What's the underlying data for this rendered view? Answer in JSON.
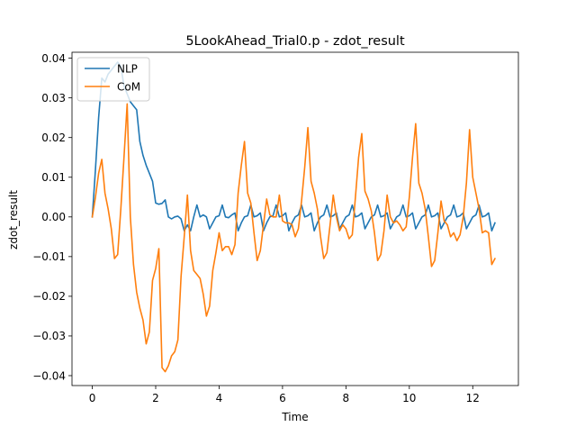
{
  "chart_data": {
    "type": "line",
    "title": "5LookAhead_Trial0.p - zdot_result",
    "xlabel": "Time",
    "ylabel": "zdot_result",
    "xlim": [
      -0.64,
      13.44
    ],
    "ylim": [
      -0.0425,
      0.0415
    ],
    "xticks": [
      0,
      2,
      4,
      6,
      8,
      10,
      12
    ],
    "xtick_labels": [
      "0",
      "2",
      "4",
      "6",
      "8",
      "10",
      "12"
    ],
    "yticks": [
      -0.04,
      -0.03,
      -0.02,
      -0.01,
      0.0,
      0.01,
      0.02,
      0.03,
      0.04
    ],
    "ytick_labels": [
      "−0.04",
      "−0.03",
      "−0.02",
      "−0.01",
      "0.00",
      "0.01",
      "0.02",
      "0.03",
      "0.04"
    ],
    "grid": false,
    "legend_position": "top-left",
    "series": [
      {
        "name": "NLP",
        "color": "#1f77b4",
        "points": [
          [
            0.0,
            0.0
          ],
          [
            0.1,
            0.012
          ],
          [
            0.2,
            0.025
          ],
          [
            0.3,
            0.035
          ],
          [
            0.4,
            0.034
          ],
          [
            0.5,
            0.036
          ],
          [
            0.6,
            0.037
          ],
          [
            0.7,
            0.038
          ],
          [
            0.8,
            0.039
          ],
          [
            0.9,
            0.038
          ],
          [
            1.0,
            0.033
          ],
          [
            1.1,
            0.031
          ],
          [
            1.2,
            0.029
          ],
          [
            1.3,
            0.028
          ],
          [
            1.4,
            0.027
          ],
          [
            1.5,
            0.019
          ],
          [
            1.6,
            0.0155
          ],
          [
            1.7,
            0.013
          ],
          [
            1.8,
            0.011
          ],
          [
            1.9,
            0.009
          ],
          [
            2.0,
            0.0035
          ],
          [
            2.1,
            0.0032
          ],
          [
            2.2,
            0.0034
          ],
          [
            2.3,
            0.0043
          ],
          [
            2.4,
            0.0
          ],
          [
            2.5,
            -0.0005
          ],
          [
            2.6,
            0.0
          ],
          [
            2.7,
            0.0002
          ],
          [
            2.8,
            -0.0005
          ],
          [
            2.9,
            -0.0035
          ],
          [
            3.0,
            -0.002
          ],
          [
            3.1,
            -0.0035
          ],
          [
            3.2,
            0.0
          ],
          [
            3.3,
            0.003
          ],
          [
            3.4,
            0.0
          ],
          [
            3.5,
            0.0005
          ],
          [
            3.6,
            0.0
          ],
          [
            3.7,
            -0.003
          ],
          [
            3.8,
            -0.0015
          ],
          [
            3.9,
            0.0
          ],
          [
            4.0,
            0.0003
          ],
          [
            4.1,
            0.003
          ],
          [
            4.2,
            0.0
          ],
          [
            4.3,
            -0.0002
          ],
          [
            4.4,
            0.0005
          ],
          [
            4.5,
            0.001
          ],
          [
            4.6,
            -0.0035
          ],
          [
            4.7,
            -0.0015
          ],
          [
            4.8,
            0.0
          ],
          [
            4.9,
            0.0003
          ],
          [
            5.0,
            0.003
          ],
          [
            5.1,
            0.0
          ],
          [
            5.2,
            0.0003
          ],
          [
            5.3,
            0.001
          ],
          [
            5.4,
            -0.0035
          ],
          [
            5.5,
            -0.0015
          ],
          [
            5.6,
            0.0
          ],
          [
            5.7,
            0.0003
          ],
          [
            5.8,
            0.003
          ],
          [
            5.9,
            0.0
          ],
          [
            6.0,
            0.0003
          ],
          [
            6.1,
            0.001
          ],
          [
            6.2,
            -0.0035
          ],
          [
            6.3,
            -0.0015
          ],
          [
            6.4,
            0.0
          ],
          [
            6.5,
            0.0005
          ],
          [
            6.6,
            0.003
          ],
          [
            6.7,
            0.0
          ],
          [
            6.8,
            0.0003
          ],
          [
            6.9,
            0.001
          ],
          [
            7.0,
            -0.0035
          ],
          [
            7.1,
            -0.0015
          ],
          [
            7.2,
            0.0
          ],
          [
            7.3,
            0.0005
          ],
          [
            7.4,
            0.003
          ],
          [
            7.5,
            0.0
          ],
          [
            7.6,
            0.0003
          ],
          [
            7.7,
            0.001
          ],
          [
            7.8,
            -0.003
          ],
          [
            7.9,
            -0.0015
          ],
          [
            8.0,
            0.0
          ],
          [
            8.1,
            0.0005
          ],
          [
            8.2,
            0.003
          ],
          [
            8.3,
            0.0
          ],
          [
            8.4,
            0.0003
          ],
          [
            8.5,
            0.001
          ],
          [
            8.6,
            -0.003
          ],
          [
            8.7,
            -0.0015
          ],
          [
            8.8,
            0.0
          ],
          [
            8.9,
            0.0005
          ],
          [
            9.0,
            0.003
          ],
          [
            9.1,
            0.0
          ],
          [
            9.2,
            0.0003
          ],
          [
            9.3,
            0.001
          ],
          [
            9.4,
            -0.003
          ],
          [
            9.5,
            -0.0015
          ],
          [
            9.6,
            0.0
          ],
          [
            9.7,
            0.0005
          ],
          [
            9.8,
            0.003
          ],
          [
            9.9,
            0.0
          ],
          [
            10.0,
            0.0003
          ],
          [
            10.1,
            0.001
          ],
          [
            10.2,
            -0.003
          ],
          [
            10.3,
            -0.0015
          ],
          [
            10.4,
            0.0
          ],
          [
            10.5,
            0.0005
          ],
          [
            10.6,
            0.003
          ],
          [
            10.7,
            0.0
          ],
          [
            10.8,
            0.0003
          ],
          [
            10.9,
            0.001
          ],
          [
            11.0,
            -0.003
          ],
          [
            11.1,
            -0.0015
          ],
          [
            11.2,
            0.0
          ],
          [
            11.3,
            0.0005
          ],
          [
            11.4,
            0.003
          ],
          [
            11.5,
            0.0
          ],
          [
            11.6,
            0.0003
          ],
          [
            11.7,
            0.001
          ],
          [
            11.8,
            -0.003
          ],
          [
            11.9,
            -0.0015
          ],
          [
            12.0,
            0.0
          ],
          [
            12.1,
            0.0005
          ],
          [
            12.2,
            0.003
          ],
          [
            12.3,
            0.0
          ],
          [
            12.4,
            0.0003
          ],
          [
            12.5,
            0.001
          ],
          [
            12.6,
            -0.0035
          ],
          [
            12.7,
            -0.0015
          ]
        ]
      },
      {
        "name": "CoM",
        "color": "#ff7f0e",
        "points": [
          [
            0.0,
            0.0
          ],
          [
            0.1,
            0.005
          ],
          [
            0.2,
            0.011
          ],
          [
            0.3,
            0.0145
          ],
          [
            0.4,
            0.006
          ],
          [
            0.5,
            0.002
          ],
          [
            0.6,
            -0.003
          ],
          [
            0.7,
            -0.0105
          ],
          [
            0.8,
            -0.0095
          ],
          [
            0.9,
            0.002
          ],
          [
            1.0,
            0.015
          ],
          [
            1.1,
            0.0285
          ],
          [
            1.2,
            0.0
          ],
          [
            1.3,
            -0.012
          ],
          [
            1.4,
            -0.019
          ],
          [
            1.5,
            -0.023
          ],
          [
            1.6,
            -0.026
          ],
          [
            1.7,
            -0.032
          ],
          [
            1.8,
            -0.029
          ],
          [
            1.9,
            -0.016
          ],
          [
            2.0,
            -0.013
          ],
          [
            2.1,
            -0.008
          ],
          [
            2.2,
            -0.038
          ],
          [
            2.3,
            -0.039
          ],
          [
            2.4,
            -0.0375
          ],
          [
            2.5,
            -0.035
          ],
          [
            2.6,
            -0.034
          ],
          [
            2.7,
            -0.031
          ],
          [
            2.8,
            -0.015
          ],
          [
            2.9,
            -0.005
          ],
          [
            3.0,
            0.0055
          ],
          [
            3.1,
            -0.0085
          ],
          [
            3.2,
            -0.0135
          ],
          [
            3.3,
            -0.0145
          ],
          [
            3.4,
            -0.0155
          ],
          [
            3.5,
            -0.0195
          ],
          [
            3.6,
            -0.025
          ],
          [
            3.7,
            -0.0225
          ],
          [
            3.8,
            -0.0135
          ],
          [
            3.9,
            -0.009
          ],
          [
            4.0,
            -0.004
          ],
          [
            4.1,
            -0.0085
          ],
          [
            4.2,
            -0.0075
          ],
          [
            4.3,
            -0.0075
          ],
          [
            4.4,
            -0.0095
          ],
          [
            4.5,
            -0.007
          ],
          [
            4.6,
            0.006
          ],
          [
            4.7,
            0.013
          ],
          [
            4.8,
            0.019
          ],
          [
            4.9,
            0.006
          ],
          [
            5.0,
            0.0035
          ],
          [
            5.1,
            -0.004
          ],
          [
            5.2,
            -0.011
          ],
          [
            5.3,
            -0.0085
          ],
          [
            5.4,
            -0.002
          ],
          [
            5.5,
            0.0045
          ],
          [
            5.6,
            0.0005
          ],
          [
            5.7,
            0.0
          ],
          [
            5.8,
            0.0
          ],
          [
            5.9,
            0.0055
          ],
          [
            6.0,
            -0.001
          ],
          [
            6.1,
            -0.0015
          ],
          [
            6.2,
            -0.0015
          ],
          [
            6.3,
            -0.002
          ],
          [
            6.4,
            -0.005
          ],
          [
            6.5,
            -0.003
          ],
          [
            6.6,
            0.004
          ],
          [
            6.7,
            0.0125
          ],
          [
            6.8,
            0.0225
          ],
          [
            6.9,
            0.009
          ],
          [
            7.0,
            0.006
          ],
          [
            7.1,
            0.002
          ],
          [
            7.2,
            -0.005
          ],
          [
            7.3,
            -0.0105
          ],
          [
            7.4,
            -0.009
          ],
          [
            7.5,
            -0.002
          ],
          [
            7.6,
            0.0055
          ],
          [
            7.7,
            0.0
          ],
          [
            7.8,
            -0.0035
          ],
          [
            7.9,
            -0.002
          ],
          [
            8.0,
            -0.003
          ],
          [
            8.1,
            -0.0055
          ],
          [
            8.2,
            -0.0045
          ],
          [
            8.3,
            0.005
          ],
          [
            8.4,
            0.015
          ],
          [
            8.5,
            0.021
          ],
          [
            8.6,
            0.0065
          ],
          [
            8.7,
            0.0045
          ],
          [
            8.8,
            0.0015
          ],
          [
            8.9,
            -0.004
          ],
          [
            9.0,
            -0.011
          ],
          [
            9.1,
            -0.0095
          ],
          [
            9.2,
            -0.0035
          ],
          [
            9.3,
            0.0055
          ],
          [
            9.4,
            0.0
          ],
          [
            9.5,
            -0.0015
          ],
          [
            9.6,
            -0.001
          ],
          [
            9.7,
            -0.002
          ],
          [
            9.8,
            -0.0035
          ],
          [
            9.9,
            -0.0025
          ],
          [
            10.0,
            0.005
          ],
          [
            10.1,
            0.015
          ],
          [
            10.2,
            0.0235
          ],
          [
            10.3,
            0.0085
          ],
          [
            10.4,
            0.006
          ],
          [
            10.5,
            0.002
          ],
          [
            10.6,
            -0.005
          ],
          [
            10.7,
            -0.0125
          ],
          [
            10.8,
            -0.011
          ],
          [
            10.9,
            -0.004
          ],
          [
            11.0,
            0.004
          ],
          [
            11.1,
            -0.001
          ],
          [
            11.2,
            -0.002
          ],
          [
            11.3,
            -0.005
          ],
          [
            11.4,
            -0.004
          ],
          [
            11.5,
            -0.006
          ],
          [
            11.6,
            -0.0045
          ],
          [
            11.7,
            0.0
          ],
          [
            11.8,
            0.0085
          ],
          [
            11.9,
            0.022
          ],
          [
            12.0,
            0.01
          ],
          [
            12.1,
            0.006
          ],
          [
            12.2,
            0.002
          ],
          [
            12.3,
            -0.004
          ],
          [
            12.4,
            -0.0035
          ],
          [
            12.5,
            -0.004
          ],
          [
            12.6,
            -0.012
          ],
          [
            12.7,
            -0.0105
          ]
        ]
      }
    ]
  }
}
